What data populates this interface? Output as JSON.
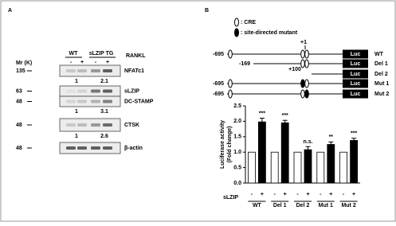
{
  "panel_a": {
    "label": "A",
    "groups": [
      "WT",
      "sLZIP TG"
    ],
    "treatment": "RANKL",
    "treatment_signs": [
      "-",
      "+",
      "-",
      "+"
    ],
    "mr_label": "Mr (K)",
    "rows": [
      {
        "marker": "135",
        "protein": "NFATc1",
        "quant": [
          "1",
          "2.1"
        ]
      },
      {
        "marker": "63",
        "protein": "sLZIP"
      },
      {
        "marker": "48",
        "protein": "DC-STAMP",
        "quant": [
          "1",
          "3.1"
        ]
      },
      {
        "marker": "48",
        "protein": "CTSK",
        "quant": [
          "1",
          "2.6"
        ]
      },
      {
        "marker": "48",
        "protein": "β-actin"
      }
    ]
  },
  "panel_b": {
    "label": "B",
    "legend": [
      ": CRE",
      ": site-directed mutant"
    ],
    "plus_one": "+1",
    "plus_hundred": "+100",
    "luc": "Luc",
    "constructs": [
      {
        "name": "WT",
        "start": "-695"
      },
      {
        "name": "Del 1",
        "start": "-169"
      },
      {
        "name": "Del 2"
      },
      {
        "name": "Mut 1",
        "start": "-695"
      },
      {
        "name": "Mut 2",
        "start": "-695"
      }
    ]
  },
  "chart_data": {
    "type": "bar",
    "y_label": [
      "Luciferase activity",
      "(Fold change)"
    ],
    "factor_label": "sLZIP",
    "categories": [
      "WT",
      "Del 1",
      "Del 2",
      "Mut 1",
      "Mut 2"
    ],
    "series": [
      {
        "name": "-",
        "color": "#ffffff",
        "values": [
          1,
          1,
          1,
          1,
          1
        ]
      },
      {
        "name": "+",
        "color": "#000000",
        "values": [
          1.98,
          1.95,
          1.08,
          1.25,
          1.38
        ],
        "errors": [
          0.12,
          0.08,
          0.1,
          0.08,
          0.07
        ]
      }
    ],
    "annotations": [
      "***",
      "***",
      "n.s.",
      "**",
      "***"
    ],
    "ylim": [
      0,
      2.5
    ],
    "yticks": [
      {
        "value": 0,
        "label": "0.0"
      },
      {
        "value": 0.5,
        "label": "0.5"
      },
      {
        "value": 1,
        "label": "1.0"
      },
      {
        "value": 1.5,
        "label": "1.5"
      },
      {
        "value": 2,
        "label": "2.0"
      },
      {
        "value": 2.5,
        "label": "2.5"
      }
    ]
  }
}
